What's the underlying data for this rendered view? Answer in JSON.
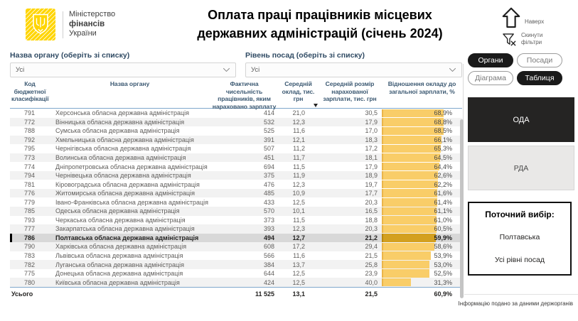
{
  "brand": {
    "line1": "Міністерство",
    "line2": "фінансів",
    "line3": "України"
  },
  "title": {
    "line1": "Оплата праці працівників місцевих",
    "line2": "державних адміністрацій (січень 2024)"
  },
  "quick_actions": {
    "up_label": "Наверх",
    "reset_label": "Скинути фільтри"
  },
  "filters": {
    "organ": {
      "label": "Назва органу (оберіть зі списку)",
      "value": "Усі"
    },
    "level": {
      "label": "Рівень посад (оберіть зі списку)",
      "value": "Усі"
    }
  },
  "view_toggles": {
    "organs": "Органи",
    "positions": "Посади",
    "chart": "Діаграма",
    "table": "Таблиця"
  },
  "side": {
    "oda_label": "ОДА",
    "rda_label": "РДА",
    "current": {
      "title": "Поточний вибір:",
      "item1": "Полтавська",
      "item2": "Усі рівні посад"
    },
    "footnote": "Інформацію подано за даними держорганів"
  },
  "table": {
    "columns": [
      "Код бюджетної класифікації",
      "Назва органу",
      "Фактична чисельність працівників, яким нараховано зарплату",
      "Середній оклад, тис. грн",
      "Середній розмір нарахованої зарплати, тис. грн",
      "Відношення окладу до загальної зарплати, %"
    ],
    "bar_scale_max": 68.9,
    "rows": [
      {
        "code": "791",
        "name": "Херсонська обласна державна адміністрація",
        "count": "414",
        "salary": "21,0",
        "accrued": "30,5",
        "ratio": "68,9%",
        "ratio_value": 68.9,
        "selected": false
      },
      {
        "code": "772",
        "name": "Вінницька обласна державна адміністрація",
        "count": "532",
        "salary": "12,3",
        "accrued": "17,9",
        "ratio": "68,8%",
        "ratio_value": 68.8,
        "selected": false
      },
      {
        "code": "788",
        "name": "Сумська обласна державна адміністрація",
        "count": "525",
        "salary": "11,6",
        "accrued": "17,0",
        "ratio": "68,5%",
        "ratio_value": 68.5,
        "selected": false
      },
      {
        "code": "792",
        "name": "Хмельницька обласна державна адміністрація",
        "count": "391",
        "salary": "12,1",
        "accrued": "18,3",
        "ratio": "66,1%",
        "ratio_value": 66.1,
        "selected": false
      },
      {
        "code": "795",
        "name": "Чернігівська обласна державна адміністрація",
        "count": "507",
        "salary": "11,2",
        "accrued": "17,2",
        "ratio": "65,3%",
        "ratio_value": 65.3,
        "selected": false
      },
      {
        "code": "773",
        "name": "Волинська обласна державна адміністрація",
        "count": "451",
        "salary": "11,7",
        "accrued": "18,1",
        "ratio": "64,5%",
        "ratio_value": 64.5,
        "selected": false
      },
      {
        "code": "774",
        "name": "Дніпропетровська обласна державна адміністрація",
        "count": "694",
        "salary": "11,5",
        "accrued": "17,9",
        "ratio": "64,4%",
        "ratio_value": 64.4,
        "selected": false
      },
      {
        "code": "794",
        "name": "Чернівецька обласна державна адміністрація",
        "count": "375",
        "salary": "11,9",
        "accrued": "18,9",
        "ratio": "62,6%",
        "ratio_value": 62.6,
        "selected": false
      },
      {
        "code": "781",
        "name": "Кіровоградська обласна державна адміністрація",
        "count": "476",
        "salary": "12,3",
        "accrued": "19,7",
        "ratio": "62,2%",
        "ratio_value": 62.2,
        "selected": false
      },
      {
        "code": "776",
        "name": "Житомирська обласна державна адміністрація",
        "count": "485",
        "salary": "10,9",
        "accrued": "17,7",
        "ratio": "61,6%",
        "ratio_value": 61.6,
        "selected": false
      },
      {
        "code": "779",
        "name": "Івано-Франківська обласна державна адміністрація",
        "count": "433",
        "salary": "12,5",
        "accrued": "20,3",
        "ratio": "61,4%",
        "ratio_value": 61.4,
        "selected": false
      },
      {
        "code": "785",
        "name": "Одеська обласна державна адміністрація",
        "count": "570",
        "salary": "10,1",
        "accrued": "16,5",
        "ratio": "61,1%",
        "ratio_value": 61.1,
        "selected": false
      },
      {
        "code": "793",
        "name": "Черкаська обласна державна адміністрація",
        "count": "373",
        "salary": "11,5",
        "accrued": "18,8",
        "ratio": "61,0%",
        "ratio_value": 61.0,
        "selected": false
      },
      {
        "code": "777",
        "name": "Закарпатська обласна державна адміністрація",
        "count": "393",
        "salary": "12,3",
        "accrued": "20,3",
        "ratio": "60,5%",
        "ratio_value": 60.5,
        "selected": false
      },
      {
        "code": "786",
        "name": "Полтавська обласна державна адміністрація",
        "count": "494",
        "salary": "12,7",
        "accrued": "21,2",
        "ratio": "59,9%",
        "ratio_value": 59.9,
        "selected": true
      },
      {
        "code": "790",
        "name": "Харківська обласна державна адміністрація",
        "count": "608",
        "salary": "17,2",
        "accrued": "29,4",
        "ratio": "58,6%",
        "ratio_value": 58.6,
        "selected": false
      },
      {
        "code": "783",
        "name": "Львівська обласна державна адміністрація",
        "count": "566",
        "salary": "11,6",
        "accrued": "21,5",
        "ratio": "53,9%",
        "ratio_value": 53.9,
        "selected": false
      },
      {
        "code": "782",
        "name": "Луганська обласна державна адміністрація",
        "count": "384",
        "salary": "13,7",
        "accrued": "25,8",
        "ratio": "53,0%",
        "ratio_value": 53.0,
        "selected": false
      },
      {
        "code": "775",
        "name": "Донецька обласна державна адміністрація",
        "count": "644",
        "salary": "12,5",
        "accrued": "23,9",
        "ratio": "52,5%",
        "ratio_value": 52.5,
        "selected": false
      },
      {
        "code": "780",
        "name": "Київська обласна державна адміністрація",
        "count": "424",
        "salary": "12,5",
        "accrued": "40,0",
        "ratio": "31,3%",
        "ratio_value": 31.3,
        "selected": false
      }
    ],
    "total": {
      "label": "Усього",
      "count": "11 525",
      "salary": "13,1",
      "accrued": "21,5",
      "ratio": "60,9%"
    }
  },
  "colors": {
    "bar": "#F9CD68",
    "bar_selected": "#D3A01F",
    "accent_line": "#7FA8CC",
    "brand_yellow": "#FFD500"
  }
}
